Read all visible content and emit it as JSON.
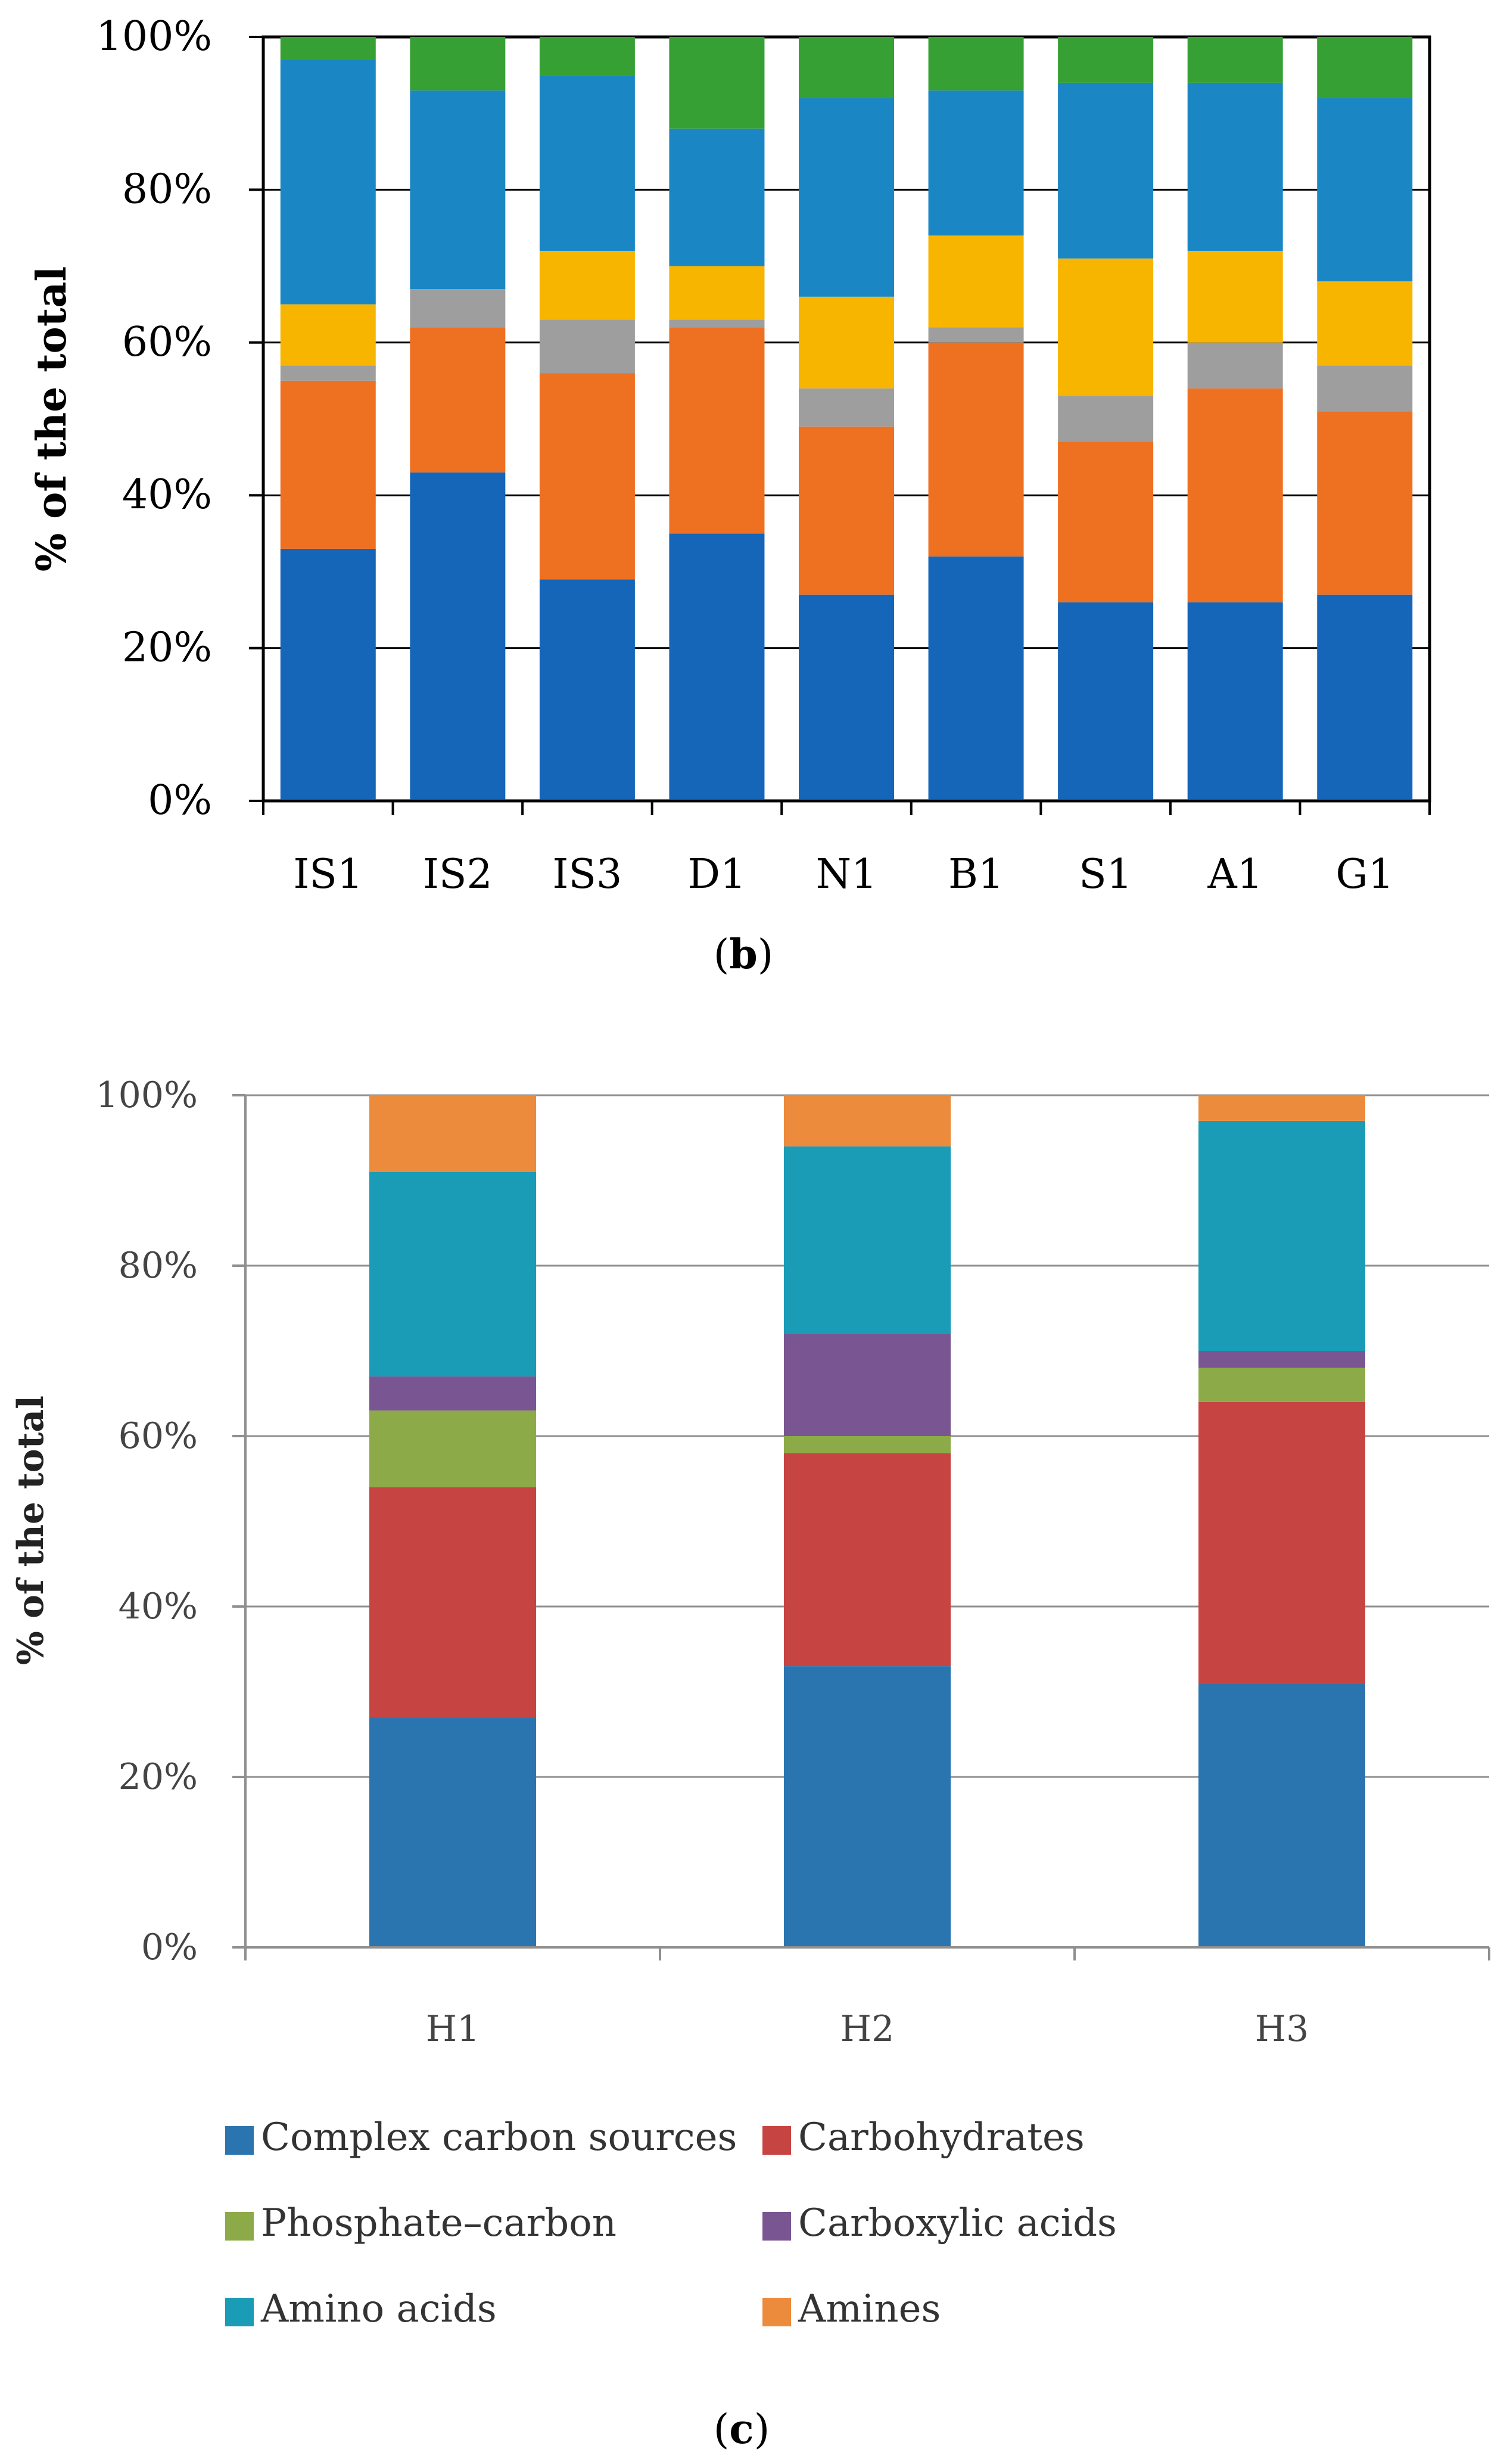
{
  "chart_data": [
    {
      "id": "b",
      "type": "bar",
      "stacked": true,
      "caption_letter": "b",
      "ylabel": "% of the total",
      "xlabel": "",
      "ylim": [
        0,
        100
      ],
      "y_ticks": [
        "0%",
        "20%",
        "40%",
        "60%",
        "80%",
        "100%"
      ],
      "grid": true,
      "categories": [
        "IS1",
        "IS2",
        "IS3",
        "D1",
        "N1",
        "B1",
        "S1",
        "A1",
        "G1"
      ],
      "series": [
        {
          "name": "Complex carbon sources",
          "color": "#1565b9",
          "values": [
            33,
            43,
            29,
            35,
            27,
            32,
            26,
            26,
            27
          ]
        },
        {
          "name": "Carbohydrates",
          "color": "#ee7021",
          "values": [
            22,
            19,
            27,
            27,
            22,
            28,
            21,
            28,
            24
          ]
        },
        {
          "name": "Phosphate-carbon",
          "color": "#9e9e9e",
          "values": [
            2,
            5,
            7,
            1,
            5,
            2,
            6,
            6,
            6
          ]
        },
        {
          "name": "Carboxylic acids",
          "color": "#f7b500",
          "values": [
            8,
            0,
            9,
            7,
            12,
            12,
            18,
            12,
            11
          ]
        },
        {
          "name": "Amino acids",
          "color": "#1a87c4",
          "values": [
            32,
            26,
            23,
            18,
            26,
            19,
            23,
            22,
            24
          ]
        },
        {
          "name": "Amines",
          "color": "#36a034",
          "values": [
            3,
            7,
            5,
            12,
            8,
            7,
            6,
            6,
            8
          ]
        }
      ]
    },
    {
      "id": "c",
      "type": "bar",
      "stacked": true,
      "caption_letter": "c",
      "ylabel": "% of the total",
      "xlabel": "",
      "ylim": [
        0,
        100
      ],
      "y_ticks": [
        "0%",
        "20%",
        "40%",
        "60%",
        "80%",
        "100%"
      ],
      "grid": true,
      "categories": [
        "H1",
        "H2",
        "H3"
      ],
      "legend_position": "bottom",
      "series": [
        {
          "name": "Complex carbon sources",
          "color": "#2a74b0",
          "values": [
            27,
            33,
            31
          ]
        },
        {
          "name": "Carbohydrates",
          "color": "#c64442",
          "values": [
            27,
            25,
            33
          ]
        },
        {
          "name": "Phosphate–carbon",
          "color": "#8cab48",
          "values": [
            9,
            2,
            4
          ]
        },
        {
          "name": "Carboxylic acids",
          "color": "#795592",
          "values": [
            4,
            12,
            2
          ]
        },
        {
          "name": "Amino acids",
          "color": "#1a9bb6",
          "values": [
            24,
            22,
            27
          ]
        },
        {
          "name": "Amines",
          "color": "#ec8b3c",
          "values": [
            9,
            6,
            3
          ]
        }
      ]
    }
  ]
}
